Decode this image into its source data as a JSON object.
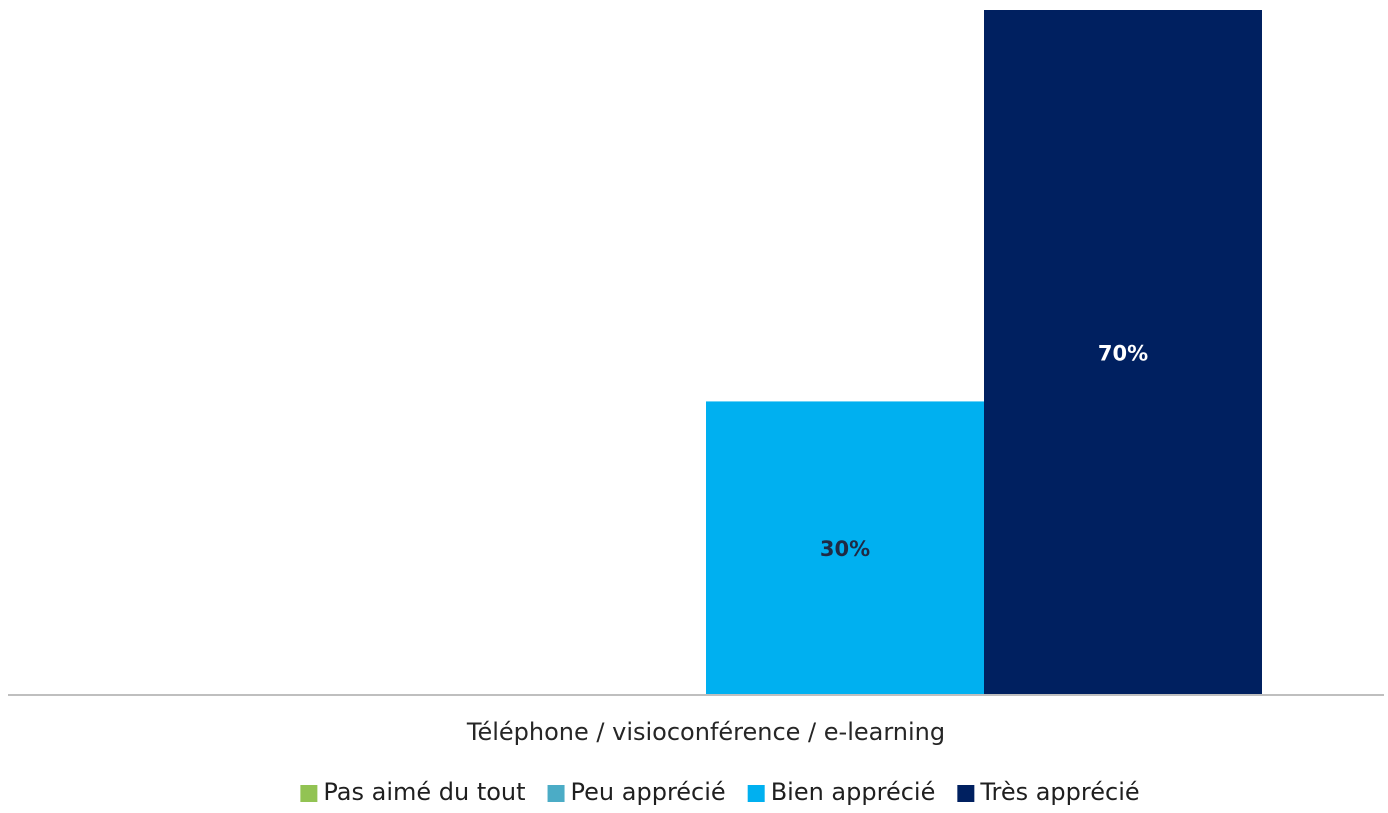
{
  "chart_data": {
    "type": "bar",
    "categories": [
      "Téléphone / visioconférence / e-learning"
    ],
    "series": [
      {
        "name": "Pas aimé du tout",
        "values": [
          0
        ],
        "color": "#92c353",
        "label_color": "#1f1f1f"
      },
      {
        "name": "Peu apprécié",
        "values": [
          0
        ],
        "color": "#4bacc6",
        "label_color": "#1f1f1f"
      },
      {
        "name": "Bien apprécié",
        "values": [
          30
        ],
        "color": "#00b0f0",
        "label_color": "#1f2a44"
      },
      {
        "name": "Très apprécié",
        "values": [
          70
        ],
        "color": "#002060",
        "label_color": "#ffffff"
      }
    ],
    "data_labels": {
      "2": "30%",
      "3": "70%"
    },
    "ylim": [
      0,
      70
    ],
    "grid": false,
    "legend_position": "bottom",
    "axis_color": "#bfbfbf"
  }
}
